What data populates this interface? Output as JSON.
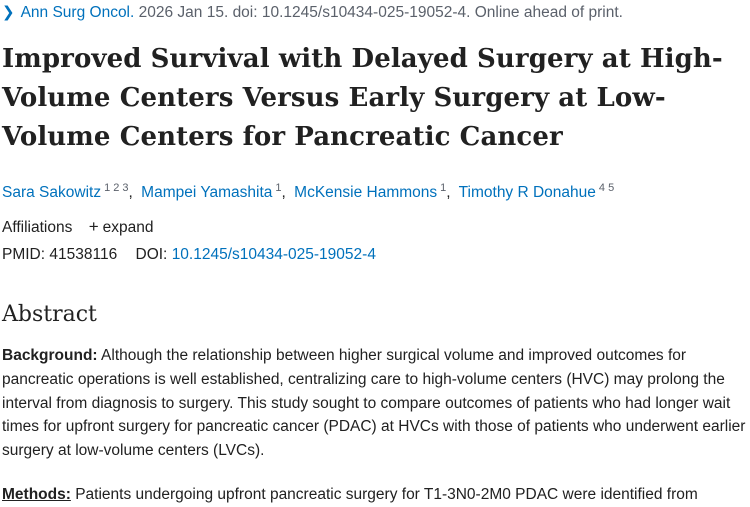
{
  "citation": {
    "journal": "Ann Surg Oncol.",
    "details": "2026 Jan 15. doi: 10.1245/s10434-025-19052-4. Online ahead of print."
  },
  "title": "Improved Survival with Delayed Surgery at High-Volume Centers Versus Early Surgery at Low-Volume Centers for Pancreatic Cancer",
  "authors": [
    {
      "name": "Sara Sakowitz",
      "affils": "1 2 3"
    },
    {
      "name": "Mampei Yamashita",
      "affils": "1"
    },
    {
      "name": "McKensie Hammons",
      "affils": "1"
    },
    {
      "name": "Timothy R Donahue",
      "affils": "4 5"
    }
  ],
  "affiliations": {
    "label": "Affiliations",
    "toggle_icon": "plus-icon",
    "toggle_label": "expand"
  },
  "ids": {
    "pmid_label": "PMID:",
    "pmid": "41538116",
    "doi_label": "DOI:",
    "doi": "10.1245/s10434-025-19052-4"
  },
  "abstract": {
    "heading": "Abstract",
    "background_label": "Background:",
    "background_text": " Although the relationship between higher surgical volume and improved outcomes for pancreatic operations is well established, centralizing care to high-volume centers (HVC) may prolong the interval from diagnosis to surgery. This study sought to compare outcomes of patients who had longer wait times for upfront surgery for pancreatic cancer (PDAC) at HVCs with those of patients who underwent earlier surgery at low-volume centers (LVCs).",
    "methods_label": "Methods:",
    "methods_text": " Patients undergoing upfront pancreatic surgery for T1-3N0-2M0 PDAC were identified from"
  },
  "colors": {
    "link": "#0071bc",
    "text": "#212121",
    "muted": "#5b616b"
  }
}
